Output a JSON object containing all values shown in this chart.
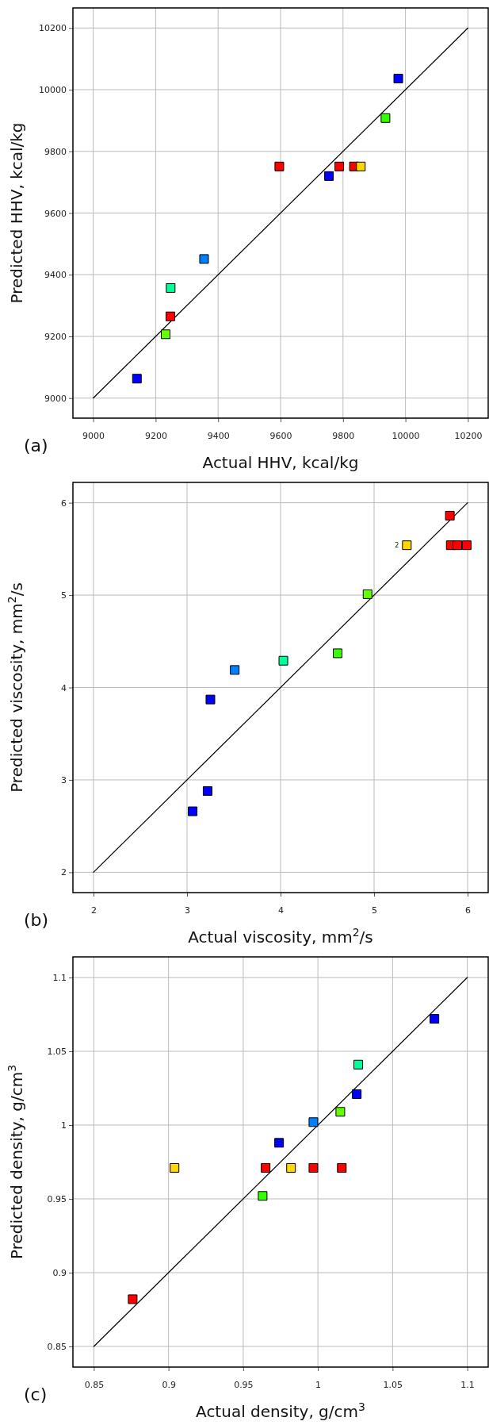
{
  "chart_data": [
    {
      "type": "scatter",
      "xlabel": "Actual HHV, kcal/kg",
      "ylabel": "Predicted HHV, kcal/kg",
      "xlim": [
        8935,
        10265
      ],
      "ylim": [
        8935,
        10265
      ],
      "xticks": [
        9000,
        9200,
        9400,
        9600,
        9800,
        10000,
        10200
      ],
      "yticks": [
        9000,
        9200,
        9400,
        9600,
        9800,
        10000,
        10200
      ],
      "grid": true,
      "marker": "square",
      "annotations": [
        "(a)"
      ],
      "series": [
        {
          "x": [
            9140,
            9232,
            9247,
            9248,
            9355,
            9596,
            9755,
            9788,
            9835,
            9857,
            9936,
            9977
          ],
          "values": [
            9063,
            9207,
            9265,
            9357,
            9451,
            9751,
            9720,
            9751,
            9751,
            9751,
            9908,
            10036
          ],
          "colors": [
            "#0000ff",
            "#66ff00",
            "#ff0000",
            "#00ff99",
            "#0080ff",
            "#ff0000",
            "#0000ff",
            "#ff0000",
            "#ff0000",
            "#ffd700",
            "#33ff00",
            "#0000ff"
          ]
        },
        {
          "type": "line",
          "x": [
            9000,
            10200
          ],
          "values": [
            9000,
            10200
          ],
          "color": "#000000",
          "marker": "none",
          "line_style": "solid"
        }
      ]
    },
    {
      "type": "scatter",
      "xlabel": "Actual viscosity, mm$^{2}$/s",
      "ylabel": "Predicted viscosity, mm$^{2}$/s",
      "xlim": [
        1.78,
        6.22
      ],
      "ylim": [
        1.78,
        6.22
      ],
      "xticks": [
        2,
        3,
        4,
        5,
        6
      ],
      "yticks": [
        2,
        3,
        4,
        5,
        6
      ],
      "grid": true,
      "marker": "square",
      "annotations": [
        "(b)",
        {
          "text": "2",
          "x": 5.35,
          "y": 5.54
        }
      ],
      "series": [
        {
          "x": [
            3.06,
            3.22,
            3.25,
            3.51,
            4.03,
            4.61,
            4.93,
            5.35,
            5.81,
            5.82,
            5.89,
            5.99
          ],
          "values": [
            2.66,
            2.88,
            3.87,
            4.19,
            4.29,
            4.37,
            5.01,
            5.54,
            5.86,
            5.54,
            5.54,
            5.54
          ],
          "colors": [
            "#0000ff",
            "#0000ff",
            "#0000ff",
            "#0080ff",
            "#00ff99",
            "#33ff00",
            "#66ff00",
            "#ffd700",
            "#ff0000",
            "#ff0000",
            "#ff0000",
            "#ff0000"
          ]
        },
        {
          "type": "line",
          "x": [
            2,
            6
          ],
          "values": [
            2,
            6
          ],
          "color": "#000000",
          "marker": "none",
          "line_style": "solid"
        }
      ]
    },
    {
      "type": "scatter",
      "xlabel": "Actual density, g/cm$^{3}$",
      "ylabel": "Predicted density, g/cm$^{3}$",
      "xlim": [
        0.836,
        1.114
      ],
      "ylim": [
        0.836,
        1.114
      ],
      "xticks": [
        0.85,
        0.9,
        0.95,
        1,
        1.05,
        1.1
      ],
      "yticks": [
        0.85,
        0.9,
        0.95,
        1,
        1.05,
        1.1
      ],
      "grid": true,
      "marker": "square",
      "annotations": [
        "(c)"
      ],
      "series": [
        {
          "x": [
            0.876,
            0.904,
            0.963,
            0.965,
            0.974,
            0.982,
            0.997,
            0.997,
            1.015,
            1.016,
            1.026,
            1.027,
            1.078
          ],
          "values": [
            0.882,
            0.971,
            0.952,
            0.971,
            0.988,
            0.971,
            1.002,
            0.971,
            1.009,
            0.971,
            1.021,
            1.041,
            1.072
          ],
          "colors": [
            "#ff0000",
            "#ffd700",
            "#33ff00",
            "#ff0000",
            "#0000ff",
            "#ffd700",
            "#0080ff",
            "#ff0000",
            "#66ff00",
            "#ff0000",
            "#0000ff",
            "#00ff99",
            "#0000ff"
          ]
        },
        {
          "type": "line",
          "x": [
            0.85,
            1.1
          ],
          "values": [
            0.85,
            1.1
          ],
          "color": "#000000",
          "marker": "none",
          "line_style": "solid"
        }
      ]
    }
  ]
}
